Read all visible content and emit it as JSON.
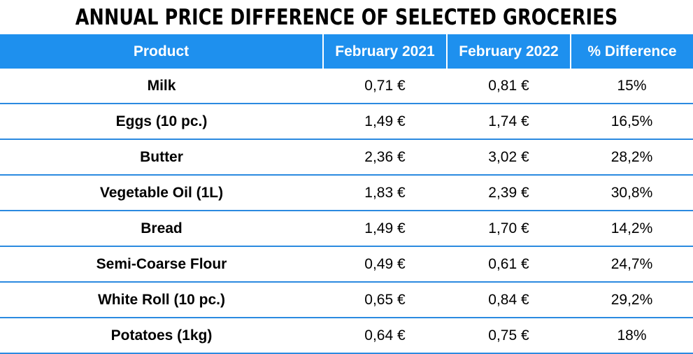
{
  "chart_data": {
    "type": "table",
    "title": "ANNUAL PRICE DIFFERENCE OF SELECTED GROCERIES",
    "columns": [
      "Product",
      "February 2021",
      "February 2022",
      "% Difference"
    ],
    "rows": [
      [
        "Milk",
        "0,71 €",
        "0,81 €",
        "15%"
      ],
      [
        "Eggs (10 pc.)",
        "1,49 €",
        "1,74 €",
        "16,5%"
      ],
      [
        "Butter",
        "2,36 €",
        "3,02 €",
        "28,2%"
      ],
      [
        "Vegetable Oil (1L)",
        "1,83 €",
        "2,39 €",
        "30,8%"
      ],
      [
        "Bread",
        "1,49 €",
        "1,70 €",
        "14,2%"
      ],
      [
        "Semi-Coarse Flour",
        "0,49 €",
        "0,61 €",
        "24,7%"
      ],
      [
        "White Roll (10 pc.)",
        "0,65 €",
        "0,84 €",
        "29,2%"
      ],
      [
        "Potatoes (1kg)",
        "0,64 €",
        "0,75 €",
        "18%"
      ]
    ],
    "colors": {
      "header_background": "#1e90ee",
      "header_text": "#ffffff",
      "row_divider": "#2b8ae0"
    }
  }
}
